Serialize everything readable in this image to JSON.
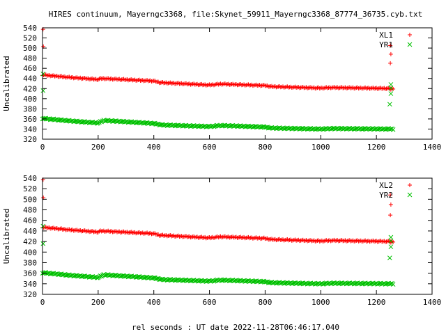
{
  "title": "HIRES continuum, Mayerngc3368, file:Skynet_59911_Mayerngc3368_87774_36735.cyb.txt",
  "xlabel": "rel seconds : UT date 2022-11-28T06:46:17.040",
  "colors": {
    "red": "#ff0000",
    "green": "#00c000",
    "axis": "#000000",
    "grid": "#a0a0a0"
  },
  "chart_data": [
    {
      "type": "scatter",
      "title": "HIRES continuum, Mayerngc3368, file:Skynet_59911_Mayerngc3368_87774_36735.cyb.txt",
      "xlabel": "",
      "ylabel": "Uncalibrated",
      "xlim": [
        0,
        1400
      ],
      "ylim": [
        320,
        540
      ],
      "xticks": [
        "0",
        "200",
        "400",
        "600",
        "800",
        "1000",
        "1200",
        "1400"
      ],
      "yticks": [
        "320",
        "340",
        "360",
        "380",
        "400",
        "420",
        "440",
        "460",
        "480",
        "500",
        "520",
        "540"
      ],
      "grid": false,
      "legend": "top-right",
      "series": [
        {
          "name": "XL1",
          "marker": "plus",
          "color": "#ff0000",
          "trend": [
            [
              0,
              447
            ],
            [
              100,
              442
            ],
            [
              200,
              438
            ],
            [
              210,
              440
            ],
            [
              400,
              435
            ],
            [
              420,
              432
            ],
            [
              600,
              427
            ],
            [
              640,
              429
            ],
            [
              800,
              426
            ],
            [
              820,
              424
            ],
            [
              1000,
              421
            ],
            [
              1040,
              422
            ],
            [
              1260,
              420
            ]
          ],
          "outliers": [
            [
              2,
              537
            ],
            [
              3,
              503
            ],
            [
              1250,
              505
            ],
            [
              1252,
              488
            ],
            [
              1250,
              470
            ],
            [
              1252,
              418
            ]
          ]
        },
        {
          "name": "YR1",
          "marker": "cross",
          "color": "#00c000",
          "trend": [
            [
              0,
              361
            ],
            [
              100,
              356
            ],
            [
              200,
              352
            ],
            [
              220,
              357
            ],
            [
              400,
              351
            ],
            [
              430,
              348
            ],
            [
              600,
              345
            ],
            [
              640,
              347
            ],
            [
              800,
              344
            ],
            [
              820,
              342
            ],
            [
              1000,
              340
            ],
            [
              1040,
              341
            ],
            [
              1260,
              340
            ]
          ],
          "outliers": [
            [
              2,
              449
            ],
            [
              2,
              416
            ],
            [
              1252,
              428
            ],
            [
              1252,
              421
            ],
            [
              1252,
              410
            ],
            [
              1248,
              389
            ]
          ]
        }
      ]
    },
    {
      "type": "scatter",
      "title": "",
      "xlabel": "rel seconds : UT date 2022-11-28T06:46:17.040",
      "ylabel": "Uncalibrated",
      "xlim": [
        0,
        1400
      ],
      "ylim": [
        320,
        540
      ],
      "xticks": [
        "0",
        "200",
        "400",
        "600",
        "800",
        "1000",
        "1200",
        "1400"
      ],
      "yticks": [
        "320",
        "340",
        "360",
        "380",
        "400",
        "420",
        "440",
        "460",
        "480",
        "500",
        "520",
        "540"
      ],
      "grid": false,
      "legend": "top-right",
      "series": [
        {
          "name": "XL2",
          "marker": "plus",
          "color": "#ff0000",
          "trend": [
            [
              0,
              447
            ],
            [
              100,
              442
            ],
            [
              200,
              438
            ],
            [
              210,
              440
            ],
            [
              400,
              435
            ],
            [
              420,
              432
            ],
            [
              600,
              427
            ],
            [
              640,
              429
            ],
            [
              800,
              426
            ],
            [
              820,
              424
            ],
            [
              1000,
              421
            ],
            [
              1040,
              422
            ],
            [
              1260,
              420
            ]
          ],
          "outliers": [
            [
              2,
              537
            ],
            [
              3,
              503
            ],
            [
              1250,
              508
            ],
            [
              1252,
              490
            ],
            [
              1250,
              470
            ],
            [
              1252,
              418
            ]
          ]
        },
        {
          "name": "YR2",
          "marker": "cross",
          "color": "#00c000",
          "trend": [
            [
              0,
              361
            ],
            [
              100,
              356
            ],
            [
              200,
              352
            ],
            [
              220,
              357
            ],
            [
              400,
              351
            ],
            [
              430,
              348
            ],
            [
              600,
              345
            ],
            [
              640,
              347
            ],
            [
              800,
              344
            ],
            [
              820,
              342
            ],
            [
              1000,
              340
            ],
            [
              1040,
              341
            ],
            [
              1260,
              340
            ]
          ],
          "outliers": [
            [
              2,
              449
            ],
            [
              2,
              416
            ],
            [
              1252,
              428
            ],
            [
              1252,
              421
            ],
            [
              1252,
              410
            ],
            [
              1248,
              389
            ]
          ]
        }
      ]
    }
  ]
}
